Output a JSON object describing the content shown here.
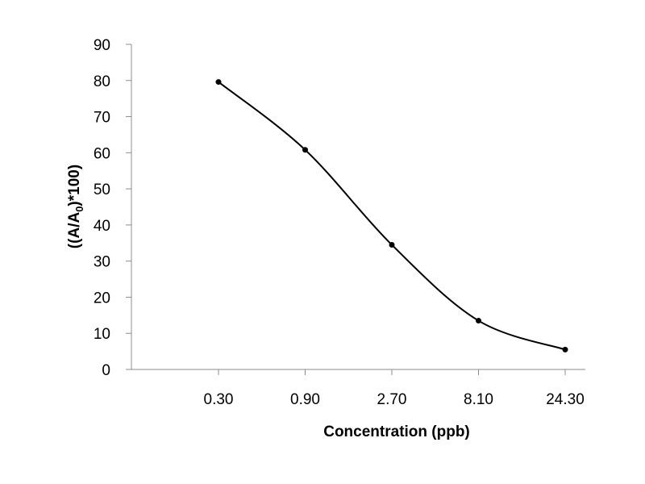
{
  "chart_data": {
    "type": "line",
    "title": "",
    "xlabel": "Concentration (ppb)",
    "ylabel": {
      "main": "((A/A",
      "sub": "0",
      "tail": ")*100)"
    },
    "categories": [
      "0.30",
      "0.90",
      "2.70",
      "8.10",
      "24.30"
    ],
    "series": [
      {
        "values": [
          79.6,
          60.8,
          34.5,
          13.5,
          5.5
        ],
        "color": "#000000",
        "markers": true,
        "smooth": true
      }
    ],
    "ylim": [
      0,
      90
    ],
    "yticks": [
      0,
      10,
      20,
      30,
      40,
      50,
      60,
      70,
      80,
      90
    ],
    "grid": false,
    "axis_color": "#8c8c8c"
  }
}
